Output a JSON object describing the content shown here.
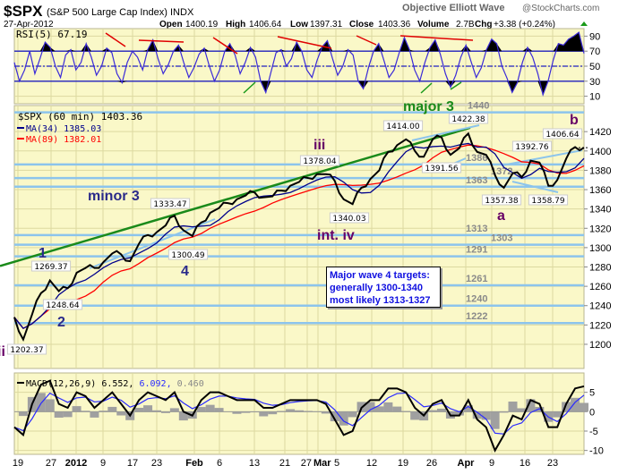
{
  "header": {
    "symbol": "$SPX",
    "name": "(S&P 500 Large Cap Index) INDX",
    "source": "Objective Elliott Wave",
    "brand": "@StockCharts.com",
    "date": "27-Apr-2012",
    "open_label": "Open",
    "open": "1400.19",
    "high_label": "High",
    "high": "1406.64",
    "low_label": "Low",
    "low": "1397.31",
    "close_label": "Close",
    "close": "1403.36",
    "volume_label": "Volume",
    "volume": "2.7B",
    "chg_label": "Chg",
    "chg": "+3.38 (+0.24%)"
  },
  "colors": {
    "panel": "#faf8c8",
    "grid": "#dcd9a0",
    "price": "#000000",
    "ma34": "#00008b",
    "ma89": "#ff0000",
    "support": "#8cc4ec",
    "trend": "#1a8a1a",
    "rsi": "#3a2ad8",
    "macd": "#000000",
    "signal": "#2a2aff",
    "hist": "#a0a0a0",
    "up": "#1a9a1a"
  },
  "chart_data": [
    {
      "type": "line",
      "panel": "rsi",
      "legend": "RSI(5) 67.19",
      "ylim": [
        0,
        100
      ],
      "yticks": [
        10,
        30,
        50,
        70,
        90
      ],
      "reference_lines": [
        30,
        50,
        70
      ],
      "values": [
        55,
        30,
        45,
        70,
        40,
        60,
        82,
        75,
        50,
        35,
        65,
        72,
        45,
        55,
        80,
        62,
        38,
        50,
        74,
        68,
        40,
        28,
        55,
        70,
        62,
        45,
        72,
        85,
        60,
        40,
        52,
        70,
        78,
        55,
        35,
        48,
        66,
        74,
        50,
        30,
        45,
        70,
        80,
        65,
        40,
        55,
        75,
        62,
        30,
        15,
        42,
        68,
        72,
        50,
        60,
        82,
        70,
        45,
        35,
        58,
        76,
        84,
        60,
        38,
        50,
        72,
        65,
        30,
        20,
        48,
        70,
        80,
        58,
        35,
        45,
        68,
        88,
        72,
        45,
        30,
        55,
        75,
        85,
        66,
        40,
        22,
        38,
        62,
        78,
        56,
        35,
        48,
        72,
        86,
        80,
        50,
        34,
        15,
        28,
        55,
        75,
        62,
        40,
        12,
        30,
        58,
        80,
        78,
        86,
        90,
        95,
        67
      ]
    },
    {
      "type": "line",
      "panel": "price",
      "legend": [
        "$SPX (60 min) 1403.36",
        "MA(34) 1385.03",
        "MA(89) 1382.01"
      ],
      "ylim": [
        1175,
        1447
      ],
      "yticks": [
        1200,
        1220,
        1240,
        1260,
        1280,
        1300,
        1320,
        1340,
        1360,
        1380,
        1400,
        1420
      ],
      "xticks": [
        "19",
        "27",
        "2012",
        "9",
        "17",
        "23",
        "Feb",
        "6",
        "13",
        "21",
        "27",
        "Mar",
        "5",
        "12",
        "19",
        "26",
        "Apr",
        "9",
        "16",
        "23"
      ],
      "x_range": [
        "2011-12-19",
        "2012-04-27"
      ],
      "values": [
        1228,
        1205,
        1231,
        1253,
        1266,
        1255,
        1258,
        1274,
        1279,
        1279,
        1285,
        1294,
        1293,
        1286,
        1304,
        1313,
        1316,
        1323,
        1333,
        1318,
        1312,
        1326,
        1336,
        1341,
        1346,
        1350,
        1354,
        1357,
        1352,
        1353,
        1359,
        1364,
        1368,
        1372,
        1376,
        1376,
        1369,
        1350,
        1345,
        1362,
        1371,
        1380,
        1399,
        1406,
        1412,
        1400,
        1394,
        1412,
        1414,
        1396,
        1403,
        1418,
        1399,
        1396,
        1375,
        1362,
        1377,
        1373,
        1390,
        1388,
        1364,
        1370,
        1392,
        1404,
        1403.36
      ],
      "support_levels": [
        1440,
        1386,
        1372,
        1363,
        1313,
        1303,
        1291,
        1261,
        1240,
        1222
      ],
      "price_labels": [
        "1202.37",
        "1248.64",
        "1269.37",
        "1300.49",
        "1333.47",
        "1378.04",
        "1340.03",
        "1414.00",
        "1422.38",
        "1391.56",
        "1392.76",
        "1357.38",
        "1358.79",
        "1406.64"
      ],
      "wave_labels": [
        "ii",
        "1",
        "2",
        "minor 3",
        "4",
        "iii",
        "int. iv",
        "major 3",
        "a",
        "b"
      ],
      "note": [
        "Major wave 4 targets:",
        "generally 1300-1340",
        "most likely 1313-1327"
      ]
    },
    {
      "type": "line",
      "panel": "macd",
      "legend": {
        "name": "MACD(12,26,9)",
        "macd": "6.552,",
        "signal": "6.092,",
        "hist": "0.460"
      },
      "ylim": [
        -11,
        10
      ],
      "yticks": [
        5,
        0,
        -5,
        -10
      ],
      "values": [
        -4,
        -6,
        2,
        7,
        8,
        2,
        1,
        5,
        4,
        1,
        3,
        5,
        2,
        -1,
        3,
        5,
        4,
        3,
        5,
        0,
        -1,
        3,
        5,
        5,
        4,
        3,
        3,
        3,
        1,
        1,
        2,
        3,
        3,
        3,
        3,
        2,
        -2,
        -6,
        -5,
        1,
        3,
        3,
        6,
        6,
        5,
        1,
        -1,
        2,
        3,
        -1,
        -1,
        3,
        -2,
        -4,
        -10,
        -6,
        -1,
        -2,
        3,
        2,
        -4,
        -4,
        2,
        6,
        6.55
      ]
    }
  ]
}
